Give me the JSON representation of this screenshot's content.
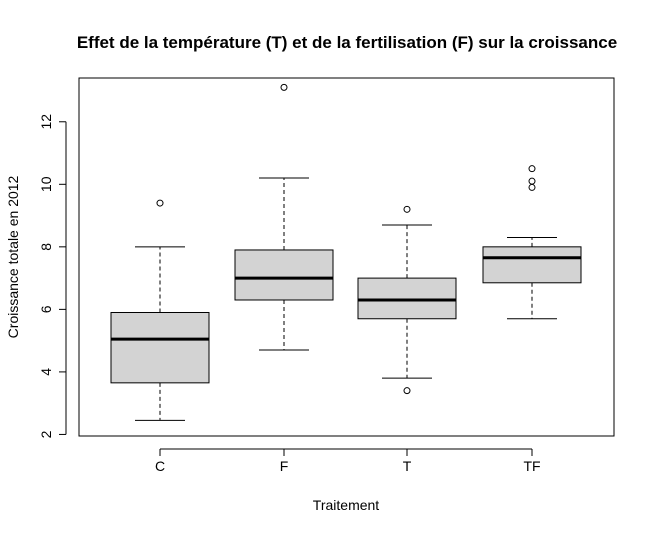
{
  "chart_data": {
    "type": "boxplot",
    "title": "Effet de la température (T) et de la fertilisation (F) sur la croissance",
    "xlabel": "Traitement",
    "ylabel": "Croissance totale en 2012",
    "categories": [
      "C",
      "F",
      "T",
      "TF"
    ],
    "yticks": [
      2,
      4,
      6,
      8,
      10,
      12
    ],
    "ylim": [
      1.95,
      13.4
    ],
    "grid": false,
    "legend": "none",
    "box_fill": "#d3d3d3",
    "boxes": [
      {
        "category": "C",
        "whisker_low": 2.45,
        "q1": 3.65,
        "median": 5.05,
        "q3": 5.9,
        "whisker_high": 8.0,
        "outliers": [
          9.4
        ]
      },
      {
        "category": "F",
        "whisker_low": 4.7,
        "q1": 6.3,
        "median": 7.0,
        "q3": 7.9,
        "whisker_high": 10.2,
        "outliers": [
          13.1
        ]
      },
      {
        "category": "T",
        "whisker_low": 3.8,
        "q1": 5.7,
        "median": 6.3,
        "q3": 7.0,
        "whisker_high": 8.7,
        "outliers": [
          9.2,
          3.4
        ]
      },
      {
        "category": "TF",
        "whisker_low": 5.7,
        "q1": 6.85,
        "median": 7.65,
        "q3": 8.0,
        "whisker_high": 8.3,
        "outliers": [
          10.5,
          10.1,
          9.9
        ]
      }
    ]
  }
}
